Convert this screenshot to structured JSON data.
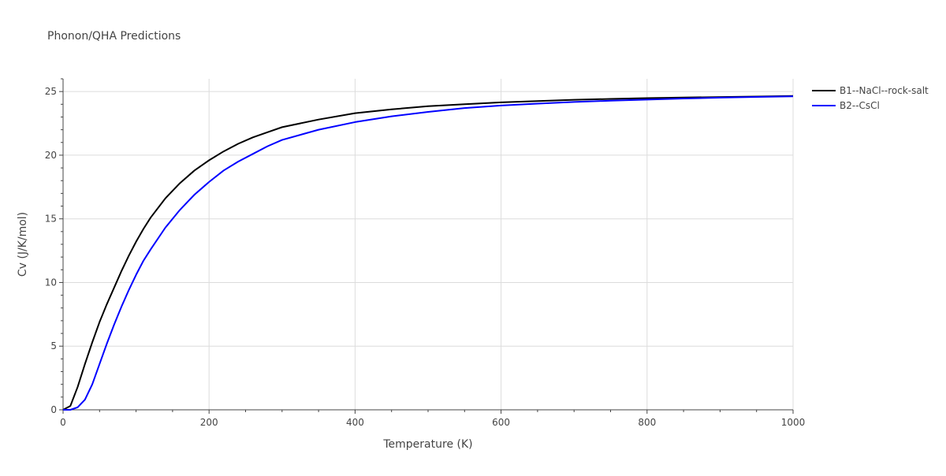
{
  "chart_data": {
    "type": "line",
    "title": "Phonon/QHA Predictions",
    "xlabel": "Temperature (K)",
    "ylabel": "Cv (J/K/mol)",
    "xlim": [
      0,
      1000
    ],
    "ylim": [
      0,
      26
    ],
    "x_ticks": [
      0,
      200,
      400,
      600,
      800,
      1000
    ],
    "y_ticks": [
      0,
      5,
      10,
      15,
      20,
      25
    ],
    "grid": true,
    "legend_position": "top-right",
    "series": [
      {
        "name": "B1--NaCl--rock-salt",
        "color": "#000000",
        "x": [
          0,
          10,
          20,
          30,
          40,
          50,
          60,
          70,
          80,
          90,
          100,
          110,
          120,
          140,
          160,
          180,
          200,
          220,
          240,
          260,
          280,
          300,
          350,
          400,
          450,
          500,
          550,
          600,
          650,
          700,
          750,
          800,
          850,
          900,
          950,
          1000
        ],
        "y": [
          0,
          0.3,
          1.8,
          3.6,
          5.3,
          6.9,
          8.3,
          9.6,
          10.9,
          12.1,
          13.2,
          14.2,
          15.1,
          16.6,
          17.8,
          18.8,
          19.6,
          20.3,
          20.9,
          21.4,
          21.8,
          22.2,
          22.8,
          23.3,
          23.6,
          23.85,
          24.0,
          24.15,
          24.25,
          24.35,
          24.42,
          24.48,
          24.53,
          24.57,
          24.61,
          24.65
        ]
      },
      {
        "name": "B2--CsCl",
        "color": "#0000ff",
        "x": [
          0,
          10,
          20,
          30,
          40,
          50,
          60,
          70,
          80,
          90,
          100,
          110,
          120,
          140,
          160,
          180,
          200,
          220,
          240,
          260,
          280,
          300,
          350,
          400,
          450,
          500,
          550,
          600,
          650,
          700,
          750,
          800,
          850,
          900,
          950,
          1000
        ],
        "y": [
          0,
          0,
          0.2,
          0.8,
          2.0,
          3.6,
          5.2,
          6.7,
          8.1,
          9.4,
          10.6,
          11.7,
          12.6,
          14.3,
          15.7,
          16.9,
          17.9,
          18.8,
          19.5,
          20.1,
          20.7,
          21.2,
          22.0,
          22.6,
          23.05,
          23.4,
          23.7,
          23.9,
          24.05,
          24.18,
          24.28,
          24.37,
          24.45,
          24.52,
          24.58,
          24.62
        ]
      }
    ]
  }
}
